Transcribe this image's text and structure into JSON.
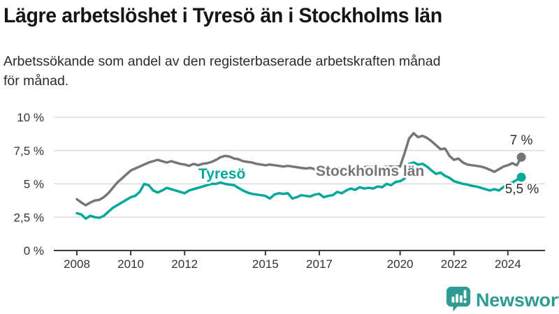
{
  "header": {
    "title": "Lägre arbetslöshet i Tyresö än i Stockholms län",
    "subtitle_line1": "Arbetssökande som andel av den registerbaserade arbetskraften månad",
    "subtitle_line2": "för månad."
  },
  "chart_data": {
    "type": "line",
    "title": "Lägre arbetslöshet i Tyresö än i Stockholms län",
    "subtitle": "Arbetssökande som andel av den registerbaserade arbetskraften månad för månad.",
    "x_unit": "year",
    "x_start": 2008.0,
    "x_step_months": 2,
    "x_end": 2024.5,
    "ylim": [
      0,
      10
    ],
    "grid": "horizontal",
    "legend": "inline-labels",
    "y_ticks": [
      {
        "value": 0,
        "label": "0 %"
      },
      {
        "value": 2.5,
        "label": "2,5 %"
      },
      {
        "value": 5,
        "label": "5 %"
      },
      {
        "value": 7.5,
        "label": "7,5 %"
      },
      {
        "value": 10,
        "label": "10 %"
      }
    ],
    "x_ticks": [
      {
        "value": 2008,
        "label": "2008"
      },
      {
        "value": 2010,
        "label": "2010"
      },
      {
        "value": 2012,
        "label": "2012"
      },
      {
        "value": 2015,
        "label": "2015"
      },
      {
        "value": 2017,
        "label": "2017"
      },
      {
        "value": 2020,
        "label": "2020"
      },
      {
        "value": 2022,
        "label": "2022"
      },
      {
        "value": 2024,
        "label": "2024"
      }
    ],
    "series": [
      {
        "name": "Tyresö",
        "slug": "tyreso",
        "color": "#00A79B",
        "end_label": "5,5 %",
        "end_value": 5.5,
        "values": [
          2.8,
          2.7,
          2.4,
          2.6,
          2.5,
          2.45,
          2.6,
          2.9,
          3.2,
          3.4,
          3.6,
          3.8,
          4.0,
          4.1,
          4.4,
          5.0,
          4.9,
          4.5,
          4.35,
          4.5,
          4.7,
          4.6,
          4.5,
          4.4,
          4.3,
          4.5,
          4.6,
          4.7,
          4.8,
          4.9,
          5.0,
          5.0,
          5.1,
          5.0,
          4.95,
          4.9,
          4.7,
          4.5,
          4.35,
          4.25,
          4.2,
          4.15,
          4.1,
          3.9,
          4.2,
          4.3,
          4.25,
          4.3,
          3.9,
          4.0,
          4.15,
          4.1,
          4.05,
          4.2,
          4.25,
          4.0,
          4.1,
          4.15,
          4.4,
          4.3,
          4.5,
          4.65,
          4.55,
          4.75,
          4.65,
          4.7,
          4.65,
          4.8,
          4.75,
          5.0,
          4.9,
          5.15,
          5.2,
          5.4,
          6.5,
          6.6,
          6.45,
          6.5,
          6.3,
          6.0,
          5.75,
          5.85,
          5.6,
          5.45,
          5.2,
          5.1,
          5.0,
          4.95,
          4.85,
          4.8,
          4.7,
          4.6,
          4.5,
          4.6,
          4.5,
          4.75,
          5.0,
          5.1,
          5.3,
          5.5
        ]
      },
      {
        "name": "Stockholms län",
        "slug": "stockholms-lan",
        "color": "#767676",
        "end_label": "7 %",
        "end_value": 7.0,
        "values": [
          3.85,
          3.6,
          3.4,
          3.6,
          3.75,
          3.8,
          4.0,
          4.3,
          4.7,
          5.1,
          5.4,
          5.7,
          6.0,
          6.15,
          6.3,
          6.45,
          6.6,
          6.7,
          6.8,
          6.7,
          6.6,
          6.7,
          6.6,
          6.5,
          6.45,
          6.35,
          6.5,
          6.4,
          6.5,
          6.55,
          6.65,
          6.8,
          7.0,
          7.1,
          7.05,
          6.9,
          6.85,
          6.7,
          6.65,
          6.6,
          6.5,
          6.45,
          6.4,
          6.45,
          6.4,
          6.35,
          6.3,
          6.35,
          6.3,
          6.25,
          6.2,
          6.15,
          6.2,
          6.1,
          6.05,
          6.1,
          6.15,
          6.1,
          6.15,
          6.2,
          6.15,
          6.2,
          6.25,
          6.2,
          6.25,
          6.3,
          6.25,
          6.3,
          6.25,
          6.3,
          6.3,
          6.3,
          6.3,
          7.3,
          8.4,
          8.8,
          8.5,
          8.6,
          8.45,
          8.2,
          7.9,
          7.6,
          7.65,
          7.1,
          6.8,
          6.9,
          6.6,
          6.45,
          6.4,
          6.35,
          6.3,
          6.2,
          6.05,
          5.9,
          6.1,
          6.3,
          6.4,
          6.55,
          6.4,
          7.0
        ]
      }
    ]
  },
  "colors": {
    "tyreso": "#00A79B",
    "stockholm": "#767676",
    "gridline": "#DBDBDB",
    "axis": "#3A3A3A",
    "tick_text": "#333333",
    "title_text": "#151515",
    "brand_teal": "#2F9C93"
  },
  "footer": {
    "brand": "Newsworthy"
  }
}
